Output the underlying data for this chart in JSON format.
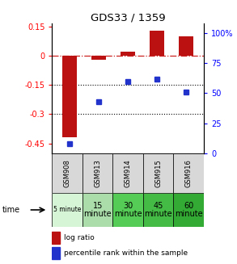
{
  "title": "GDS33 / 1359",
  "samples": [
    "GSM908",
    "GSM913",
    "GSM914",
    "GSM915",
    "GSM916"
  ],
  "time_labels_row1": [
    "5 minute",
    "15",
    "30",
    "45",
    "60"
  ],
  "time_labels_row2": [
    "",
    "minute",
    "minute",
    "minute",
    "minute"
  ],
  "time_colors": [
    "#d6f5d6",
    "#aaddaa",
    "#55cc55",
    "#44bb44",
    "#33aa33"
  ],
  "log_ratio": [
    -0.42,
    -0.02,
    0.02,
    0.13,
    0.1
  ],
  "percentile_rank": [
    8,
    43,
    60,
    62,
    51
  ],
  "bar_color": "#bb1111",
  "dot_color": "#2233cc",
  "left_yticks": [
    0.15,
    0.0,
    -0.15,
    -0.3,
    -0.45
  ],
  "left_yticklabels": [
    "0.15",
    "0",
    "-0.15",
    "-0.3",
    "-0.45"
  ],
  "right_yticks": [
    0,
    25,
    50,
    75,
    100
  ],
  "right_yticklabels": [
    "0",
    "25",
    "50",
    "75",
    "100%"
  ],
  "hline_zero_color": "#cc2222",
  "hline_dotted_values": [
    -0.15,
    -0.3
  ],
  "legend_log_ratio": "log ratio",
  "legend_percentile": "percentile rank within the sample",
  "gsm_bg": "#d8d8d8"
}
